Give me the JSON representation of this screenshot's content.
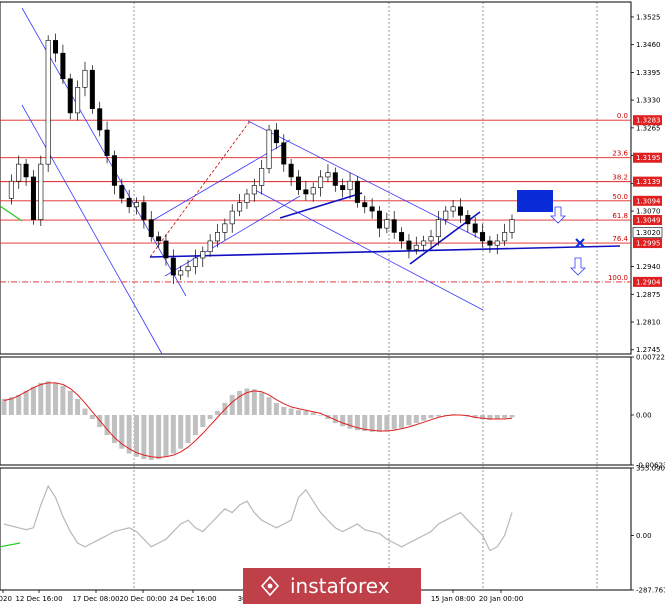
{
  "chart_data": {
    "type": "candlestick",
    "instrument_panel": {
      "y_ticks": [
        "1.3525",
        "1.3460",
        "1.3395",
        "1.3330",
        "1.3265",
        "1.3200",
        "1.3135",
        "1.3070",
        "1.2940",
        "1.2875",
        "1.2810",
        "1.2745"
      ],
      "ylim": [
        1.2735,
        1.356
      ],
      "fib_levels": [
        {
          "label": "0.0",
          "price": "1.3283",
          "value": 1.3283
        },
        {
          "label": "23.6",
          "price": "1.3195",
          "value": 1.3195
        },
        {
          "label": "38.2",
          "price": "1.3139",
          "value": 1.3139
        },
        {
          "label": "50.0",
          "price": "1.3094",
          "value": 1.3094
        },
        {
          "label": "61.8",
          "price": "1.3049",
          "value": 1.3049
        },
        {
          "label": "76.4",
          "price": "1.2995",
          "value": 1.2995
        },
        {
          "label": "100.0",
          "price": "1.2904",
          "value": 1.2904
        }
      ],
      "current_price": {
        "price": "1.3020",
        "value": 1.302
      },
      "close_path": [
        1.31,
        1.314,
        1.318,
        1.315,
        1.305,
        1.318,
        1.347,
        1.344,
        1.338,
        1.33,
        1.336,
        1.34,
        1.331,
        1.326,
        1.32,
        1.313,
        1.31,
        1.308,
        1.309,
        1.305,
        1.301,
        1.3,
        1.296,
        1.292,
        1.293,
        1.294,
        1.296,
        1.2975,
        1.3,
        1.302,
        1.304,
        1.307,
        1.309,
        1.311,
        1.313,
        1.317,
        1.326,
        1.323,
        1.318,
        1.315,
        1.312,
        1.311,
        1.3125,
        1.315,
        1.316,
        1.313,
        1.312,
        1.314,
        1.309,
        1.308,
        1.307,
        1.303,
        1.305,
        1.302,
        1.3,
        1.298,
        1.299,
        1.3,
        1.301,
        1.305,
        1.307,
        1.308,
        1.306,
        1.304,
        1.302,
        1.3,
        1.299,
        1.3,
        1.302,
        1.305
      ]
    },
    "macd_panel": {
      "y_ticks": [
        "0.00722",
        "0.00",
        "-0.00623"
      ],
      "ylim": [
        -0.00623,
        0.00722
      ],
      "histogram": [
        0.002,
        0.0022,
        0.0025,
        0.003,
        0.0035,
        0.004,
        0.0042,
        0.004,
        0.0036,
        0.003,
        0.002,
        0.0008,
        -0.0005,
        -0.0015,
        -0.0025,
        -0.0035,
        -0.0042,
        -0.0048,
        -0.0052,
        -0.0055,
        -0.0056,
        -0.0055,
        -0.0052,
        -0.0048,
        -0.0042,
        -0.0035,
        -0.0025,
        -0.0015,
        -0.0005,
        0.0005,
        0.0015,
        0.0025,
        0.003,
        0.0033,
        0.0032,
        0.0028,
        0.0022,
        0.0015,
        0.001,
        0.0008,
        0.0006,
        0.0005,
        0.0003,
        0.0,
        -0.0005,
        -0.001,
        -0.0014,
        -0.0017,
        -0.0019,
        -0.002,
        -0.0021,
        -0.0021,
        -0.002,
        -0.0018,
        -0.0016,
        -0.0013,
        -0.001,
        -0.0007,
        -0.0004,
        -0.0002,
        0.0,
        0.0001,
        0.0,
        -0.0002,
        -0.0004,
        -0.0005,
        -0.0006,
        -0.0005,
        -0.0004,
        -0.0003
      ],
      "signal": [
        0.0018,
        0.002,
        0.0024,
        0.0029,
        0.0034,
        0.0038,
        0.004,
        0.004,
        0.0038,
        0.0033,
        0.0025,
        0.0015,
        0.0004,
        -0.0007,
        -0.0018,
        -0.0028,
        -0.0036,
        -0.0042,
        -0.0047,
        -0.005,
        -0.0052,
        -0.0053,
        -0.0052,
        -0.005,
        -0.0046,
        -0.004,
        -0.0032,
        -0.0023,
        -0.0013,
        -0.0003,
        0.0007,
        0.0016,
        0.0023,
        0.0028,
        0.003,
        0.0029,
        0.0025,
        0.0019,
        0.0014,
        0.001,
        0.0008,
        0.0006,
        0.0004,
        0.0002,
        -0.0002,
        -0.0006,
        -0.001,
        -0.0013,
        -0.0016,
        -0.0018,
        -0.0019,
        -0.002,
        -0.002,
        -0.0019,
        -0.0017,
        -0.0015,
        -0.0012,
        -0.0009,
        -0.0006,
        -0.0003,
        -0.0001,
        0.0,
        0.0,
        -0.0001,
        -0.0003,
        -0.0004,
        -0.0005,
        -0.0005,
        -0.0005,
        -0.0004
      ]
    },
    "cci_panel": {
      "y_ticks": [
        "355.0903",
        "0.00",
        "-287.767"
      ],
      "ylim": [
        -287.767,
        355.0903
      ],
      "line": [
        60,
        50,
        40,
        30,
        40,
        160,
        260,
        200,
        100,
        20,
        -40,
        -60,
        -40,
        -20,
        0,
        20,
        30,
        40,
        20,
        -20,
        -60,
        -40,
        -20,
        20,
        60,
        80,
        40,
        20,
        60,
        100,
        140,
        120,
        160,
        180,
        120,
        80,
        60,
        40,
        60,
        80,
        200,
        240,
        180,
        120,
        80,
        40,
        20,
        40,
        60,
        30,
        20,
        10,
        -20,
        -40,
        -60,
        -40,
        -20,
        0,
        20,
        60,
        80,
        100,
        120,
        80,
        40,
        0,
        -80,
        -60,
        0,
        120
      ],
      "green_segment": [
        -60,
        -40
      ]
    },
    "x_ticks": [
      "2020",
      "12 Dec 16:00",
      "17 Dec 08:00",
      "20 Dec 00:00",
      "24 Dec 16:00",
      "30 Dec",
      "15 Jan 08:00",
      "20 Jan 00:00"
    ]
  },
  "watermark": {
    "brand": "instaforex"
  }
}
